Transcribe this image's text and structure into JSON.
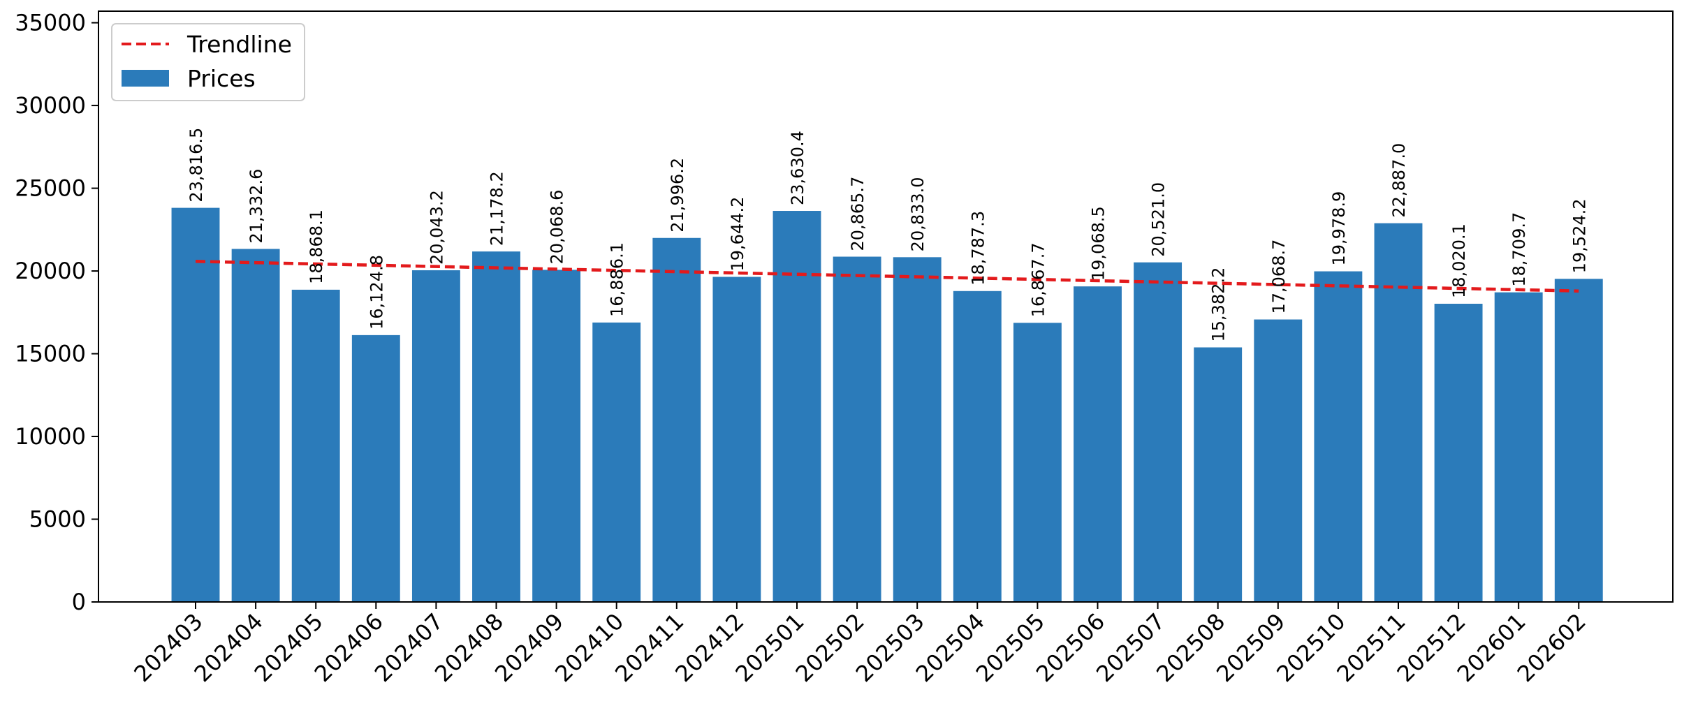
{
  "chart_data": {
    "type": "bar",
    "categories": [
      "202403",
      "202404",
      "202405",
      "202406",
      "202407",
      "202408",
      "202409",
      "202410",
      "202411",
      "202412",
      "202501",
      "202502",
      "202503",
      "202504",
      "202505",
      "202506",
      "202507",
      "202508",
      "202509",
      "202510",
      "202511",
      "202512",
      "202601",
      "202602"
    ],
    "series": [
      {
        "name": "Prices",
        "values": [
          23816.5,
          21332.6,
          18868.1,
          16124.8,
          20043.2,
          21178.2,
          20068.6,
          16886.1,
          21996.2,
          19644.2,
          23630.4,
          20865.7,
          20833.0,
          18787.3,
          16867.7,
          19068.5,
          20521.0,
          15382.2,
          17068.7,
          19978.9,
          22887.0,
          18020.1,
          18709.7,
          19524.2
        ],
        "labels": [
          "23,816.5",
          "21,332.6",
          "18,868.1",
          "16,124.8",
          "20,043.2",
          "21,178.2",
          "20,068.6",
          "16,886.1",
          "21,996.2",
          "19,644.2",
          "23,630.4",
          "20,865.7",
          "20,833.0",
          "18,787.3",
          "16,867.7",
          "19,068.5",
          "20,521.0",
          "15,382.2",
          "17,068.7",
          "19,978.9",
          "22,887.0",
          "18,020.1",
          "18,709.7",
          "19,524.2"
        ],
        "color": "#2b7bba"
      },
      {
        "name": "Trendline",
        "type": "line",
        "style": "dashed",
        "start": 20580,
        "end": 18790,
        "color": "#e31a1c"
      }
    ],
    "title": "",
    "xlabel": "",
    "ylabel": "",
    "ylim": [
      0,
      35700
    ],
    "yticks": [
      0,
      5000,
      10000,
      15000,
      20000,
      25000,
      30000,
      35000
    ],
    "grid": false,
    "legend": "top-left"
  }
}
